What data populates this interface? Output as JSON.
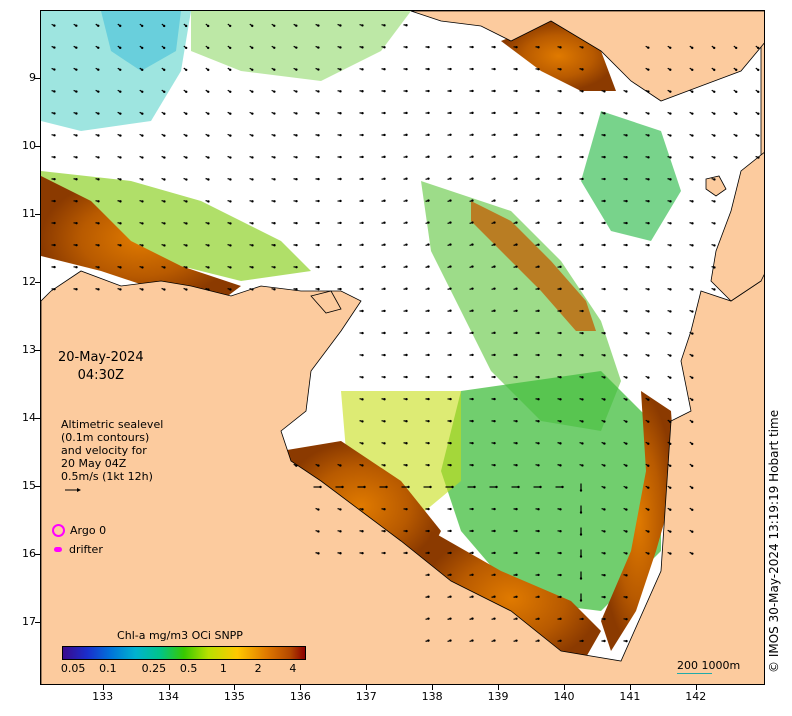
{
  "map": {
    "y_axis": {
      "labels": [
        "9",
        "10",
        "11",
        "12",
        "13",
        "14",
        "15",
        "16",
        "17"
      ],
      "values": [
        -9,
        -10,
        -11,
        -12,
        -13,
        -14,
        -15,
        -16,
        -17
      ]
    },
    "x_axis": {
      "labels": [
        "133",
        "134",
        "135",
        "136",
        "137",
        "138",
        "139",
        "140",
        "141",
        "142"
      ],
      "values": [
        133,
        134,
        135,
        136,
        137,
        138,
        139,
        140,
        141,
        142
      ]
    },
    "lon_range": [
      132.05,
      143.05
    ],
    "lat_range": [
      -8.0,
      -17.92
    ],
    "colors": {
      "land": "#fccb9e",
      "ocean_nodata": "#ffffff",
      "argo": "#ff00ff",
      "drifter": "#ff00ff"
    }
  },
  "overlay": {
    "date": "20-May-2024",
    "time": "04:30Z",
    "altimetry_lines": [
      "Altimetric sealevel",
      "(0.1m contours)",
      "and velocity for",
      "20 May 04Z",
      "0.5m/s (1kt 12h)"
    ]
  },
  "legend": {
    "argo_label": "Argo 0",
    "drifter_label": "drifter"
  },
  "colorbar": {
    "title": "Chl-a mg/m3 OCi SNPP",
    "labels": [
      "0.05",
      "0.1",
      "0.25",
      "0.5",
      "1",
      "2",
      "4"
    ],
    "label_values": [
      0.05,
      0.1,
      0.25,
      0.5,
      1,
      2,
      4
    ]
  },
  "scalebar": {
    "label": "200  1000m"
  },
  "credit": "© IMOS 30-May-2024 13:19:19 Hobart time"
}
